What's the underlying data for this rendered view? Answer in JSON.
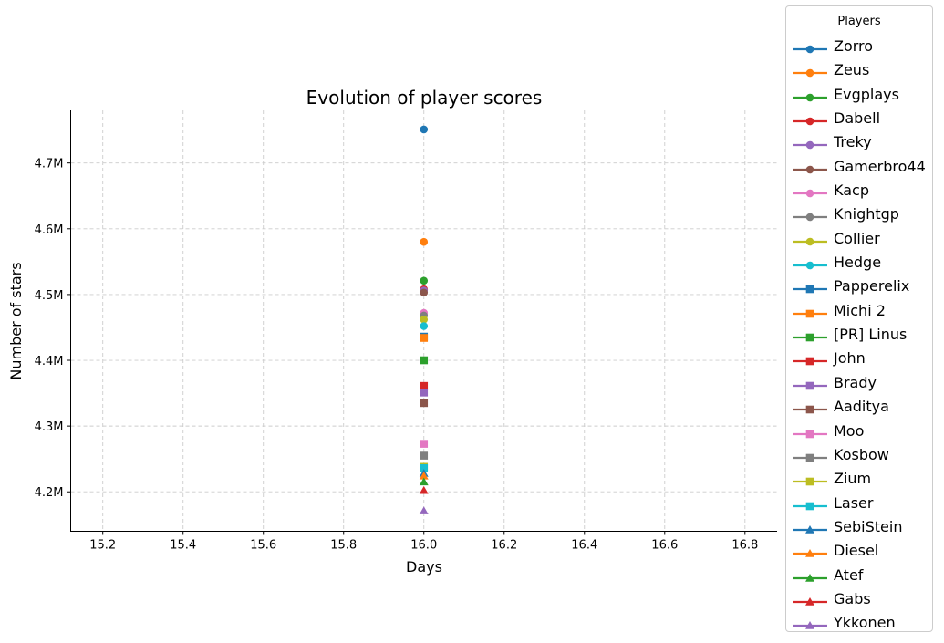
{
  "chart_data": {
    "type": "scatter",
    "title": "Evolution of player scores",
    "xlabel": "Days",
    "ylabel": "Number of stars",
    "xlim": [
      15.12,
      16.88
    ],
    "ylim": [
      4140000,
      4780000
    ],
    "x_ticks": [
      15.2,
      15.4,
      15.6,
      15.8,
      16.0,
      16.2,
      16.4,
      16.6,
      16.8
    ],
    "x_tick_labels": [
      "15.2",
      "15.4",
      "15.6",
      "15.8",
      "16.0",
      "16.2",
      "16.4",
      "16.6",
      "16.8"
    ],
    "y_ticks": [
      4200000,
      4300000,
      4400000,
      4500000,
      4600000,
      4700000
    ],
    "y_tick_labels": [
      "4.2M",
      "4.3M",
      "4.4M",
      "4.5M",
      "4.6M",
      "4.7M"
    ],
    "grid": true,
    "legend_title": "Players",
    "legend_position": "outside-right",
    "series": [
      {
        "name": "Zorro",
        "color": "#1f77b4",
        "marker": "circle",
        "x": [
          16.0
        ],
        "y": [
          4751000
        ]
      },
      {
        "name": "Zeus",
        "color": "#ff7f0e",
        "marker": "circle",
        "x": [
          16.0
        ],
        "y": [
          4580000
        ]
      },
      {
        "name": "Evgplays",
        "color": "#2ca02c",
        "marker": "circle",
        "x": [
          16.0
        ],
        "y": [
          4521000
        ]
      },
      {
        "name": "Dabell",
        "color": "#d62728",
        "marker": "circle",
        "x": [
          16.0
        ],
        "y": [
          4508000
        ]
      },
      {
        "name": "Treky",
        "color": "#9467bd",
        "marker": "circle",
        "x": [
          16.0
        ],
        "y": [
          4506000
        ]
      },
      {
        "name": "Gamerbro44",
        "color": "#8c564b",
        "marker": "circle",
        "x": [
          16.0
        ],
        "y": [
          4503000
        ]
      },
      {
        "name": "Kacp",
        "color": "#e377c2",
        "marker": "circle",
        "x": [
          16.0
        ],
        "y": [
          4472000
        ]
      },
      {
        "name": "Knightgp",
        "color": "#7f7f7f",
        "marker": "circle",
        "x": [
          16.0
        ],
        "y": [
          4468000
        ]
      },
      {
        "name": "Collier",
        "color": "#bcbd22",
        "marker": "circle",
        "x": [
          16.0
        ],
        "y": [
          4462000
        ]
      },
      {
        "name": "Hedge",
        "color": "#17becf",
        "marker": "circle",
        "x": [
          16.0
        ],
        "y": [
          4452000
        ]
      },
      {
        "name": "Papperelix",
        "color": "#1f77b4",
        "marker": "square",
        "x": [
          16.0
        ],
        "y": [
          4436000
        ]
      },
      {
        "name": "Michi 2",
        "color": "#ff7f0e",
        "marker": "square",
        "x": [
          16.0
        ],
        "y": [
          4434000
        ]
      },
      {
        "name": "[PR] Linus",
        "color": "#2ca02c",
        "marker": "square",
        "x": [
          16.0
        ],
        "y": [
          4400000
        ]
      },
      {
        "name": "John",
        "color": "#d62728",
        "marker": "square",
        "x": [
          16.0
        ],
        "y": [
          4361000
        ]
      },
      {
        "name": "Brady",
        "color": "#9467bd",
        "marker": "square",
        "x": [
          16.0
        ],
        "y": [
          4351000
        ]
      },
      {
        "name": "Aaditya",
        "color": "#8c564b",
        "marker": "square",
        "x": [
          16.0
        ],
        "y": [
          4335000
        ]
      },
      {
        "name": "Moo",
        "color": "#e377c2",
        "marker": "square",
        "x": [
          16.0
        ],
        "y": [
          4273000
        ]
      },
      {
        "name": "Kosbow",
        "color": "#7f7f7f",
        "marker": "square",
        "x": [
          16.0
        ],
        "y": [
          4255000
        ]
      },
      {
        "name": "Zium",
        "color": "#bcbd22",
        "marker": "square",
        "x": [
          16.0
        ],
        "y": [
          4238000
        ]
      },
      {
        "name": "Laser",
        "color": "#17becf",
        "marker": "square",
        "x": [
          16.0
        ],
        "y": [
          4236000
        ]
      },
      {
        "name": "SebiStein",
        "color": "#1f77b4",
        "marker": "triangle",
        "x": [
          16.0
        ],
        "y": [
          4228000
        ]
      },
      {
        "name": "Diesel",
        "color": "#ff7f0e",
        "marker": "triangle",
        "x": [
          16.0
        ],
        "y": [
          4224000
        ]
      },
      {
        "name": "Atef",
        "color": "#2ca02c",
        "marker": "triangle",
        "x": [
          16.0
        ],
        "y": [
          4215000
        ]
      },
      {
        "name": "Gabs",
        "color": "#d62728",
        "marker": "triangle",
        "x": [
          16.0
        ],
        "y": [
          4202000
        ]
      },
      {
        "name": "Ykkonen",
        "color": "#9467bd",
        "marker": "triangle",
        "x": [
          16.0
        ],
        "y": [
          4171000
        ]
      }
    ]
  }
}
